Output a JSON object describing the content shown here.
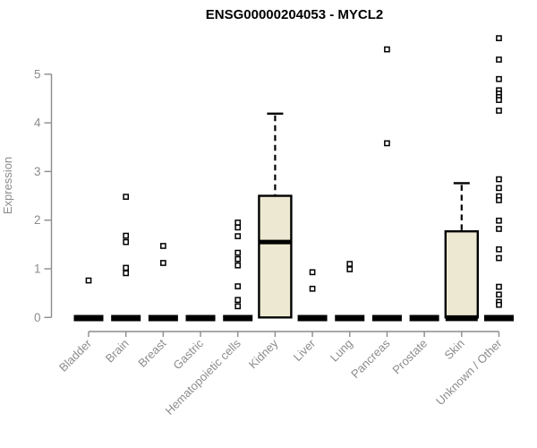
{
  "chart_data": {
    "type": "boxplot",
    "title": "ENSG00000204053 - MYCL2",
    "ylabel": "Expression",
    "xlabel": "",
    "ylim": [
      0,
      5.8
    ],
    "yticks": [
      0,
      1,
      2,
      3,
      4,
      5
    ],
    "grid": false,
    "legend": "none",
    "colors": {
      "box_fill": "#EDE8D1",
      "box_border": "#000000",
      "marker": "#000000",
      "axis": "#8C8C8C",
      "title": "#000000",
      "background": "#FFFFFF"
    },
    "categories": [
      "Bladder",
      "Brain",
      "Breast",
      "Gastric",
      "Hematopoietic cells",
      "Kidney",
      "Liver",
      "Lung",
      "Pancreas",
      "Prostate",
      "Skin",
      "Unknown / Other"
    ],
    "boxes": [
      {
        "category": "Bladder",
        "q1": 0,
        "median": 0,
        "q3": 0,
        "whisker_low": 0,
        "whisker_high": 0,
        "outliers": [
          0.76
        ]
      },
      {
        "category": "Brain",
        "q1": 0,
        "median": 0,
        "q3": 0,
        "whisker_low": 0,
        "whisker_high": 0,
        "outliers": [
          2.48,
          1.68,
          1.55,
          1.02,
          0.91
        ]
      },
      {
        "category": "Breast",
        "q1": 0,
        "median": 0,
        "q3": 0,
        "whisker_low": 0,
        "whisker_high": 0,
        "outliers": [
          1.47,
          1.12
        ]
      },
      {
        "category": "Gastric",
        "q1": 0,
        "median": 0,
        "q3": 0,
        "whisker_low": 0,
        "whisker_high": 0,
        "outliers": []
      },
      {
        "category": "Hematopoietic cells",
        "q1": 0,
        "median": 0,
        "q3": 0,
        "whisker_low": 0,
        "whisker_high": 0,
        "outliers": [
          1.95,
          1.85,
          1.67,
          1.33,
          1.2,
          1.07,
          0.64,
          0.36,
          0.23
        ]
      },
      {
        "category": "Kidney",
        "q1": 0,
        "median": 1.55,
        "q3": 2.5,
        "whisker_low": 0,
        "whisker_high": 4.19,
        "outliers": []
      },
      {
        "category": "Liver",
        "q1": 0,
        "median": 0,
        "q3": 0,
        "whisker_low": 0,
        "whisker_high": 0,
        "outliers": [
          0.93,
          0.59
        ]
      },
      {
        "category": "Lung",
        "q1": 0,
        "median": 0,
        "q3": 0,
        "whisker_low": 0,
        "whisker_high": 0,
        "outliers": [
          1.1,
          0.99
        ]
      },
      {
        "category": "Pancreas",
        "q1": 0,
        "median": 0,
        "q3": 0,
        "whisker_low": 0,
        "whisker_high": 0,
        "outliers": [
          5.51,
          3.58
        ]
      },
      {
        "category": "Prostate",
        "q1": 0,
        "median": 0,
        "q3": 0,
        "whisker_low": 0,
        "whisker_high": 0,
        "outliers": []
      },
      {
        "category": "Skin",
        "q1": 0,
        "median": 0,
        "q3": 1.77,
        "whisker_low": 0,
        "whisker_high": 2.76,
        "outliers": []
      },
      {
        "category": "Unknown / Other",
        "q1": 0,
        "median": 0,
        "q3": 0,
        "whisker_low": 0,
        "whisker_high": 0,
        "outliers": [
          5.74,
          5.3,
          4.9,
          4.67,
          4.6,
          4.53,
          4.47,
          4.25,
          2.84,
          2.66,
          2.49,
          2.41,
          1.99,
          1.82,
          1.4,
          1.22,
          0.63,
          0.47,
          0.32,
          0.26
        ]
      }
    ]
  }
}
